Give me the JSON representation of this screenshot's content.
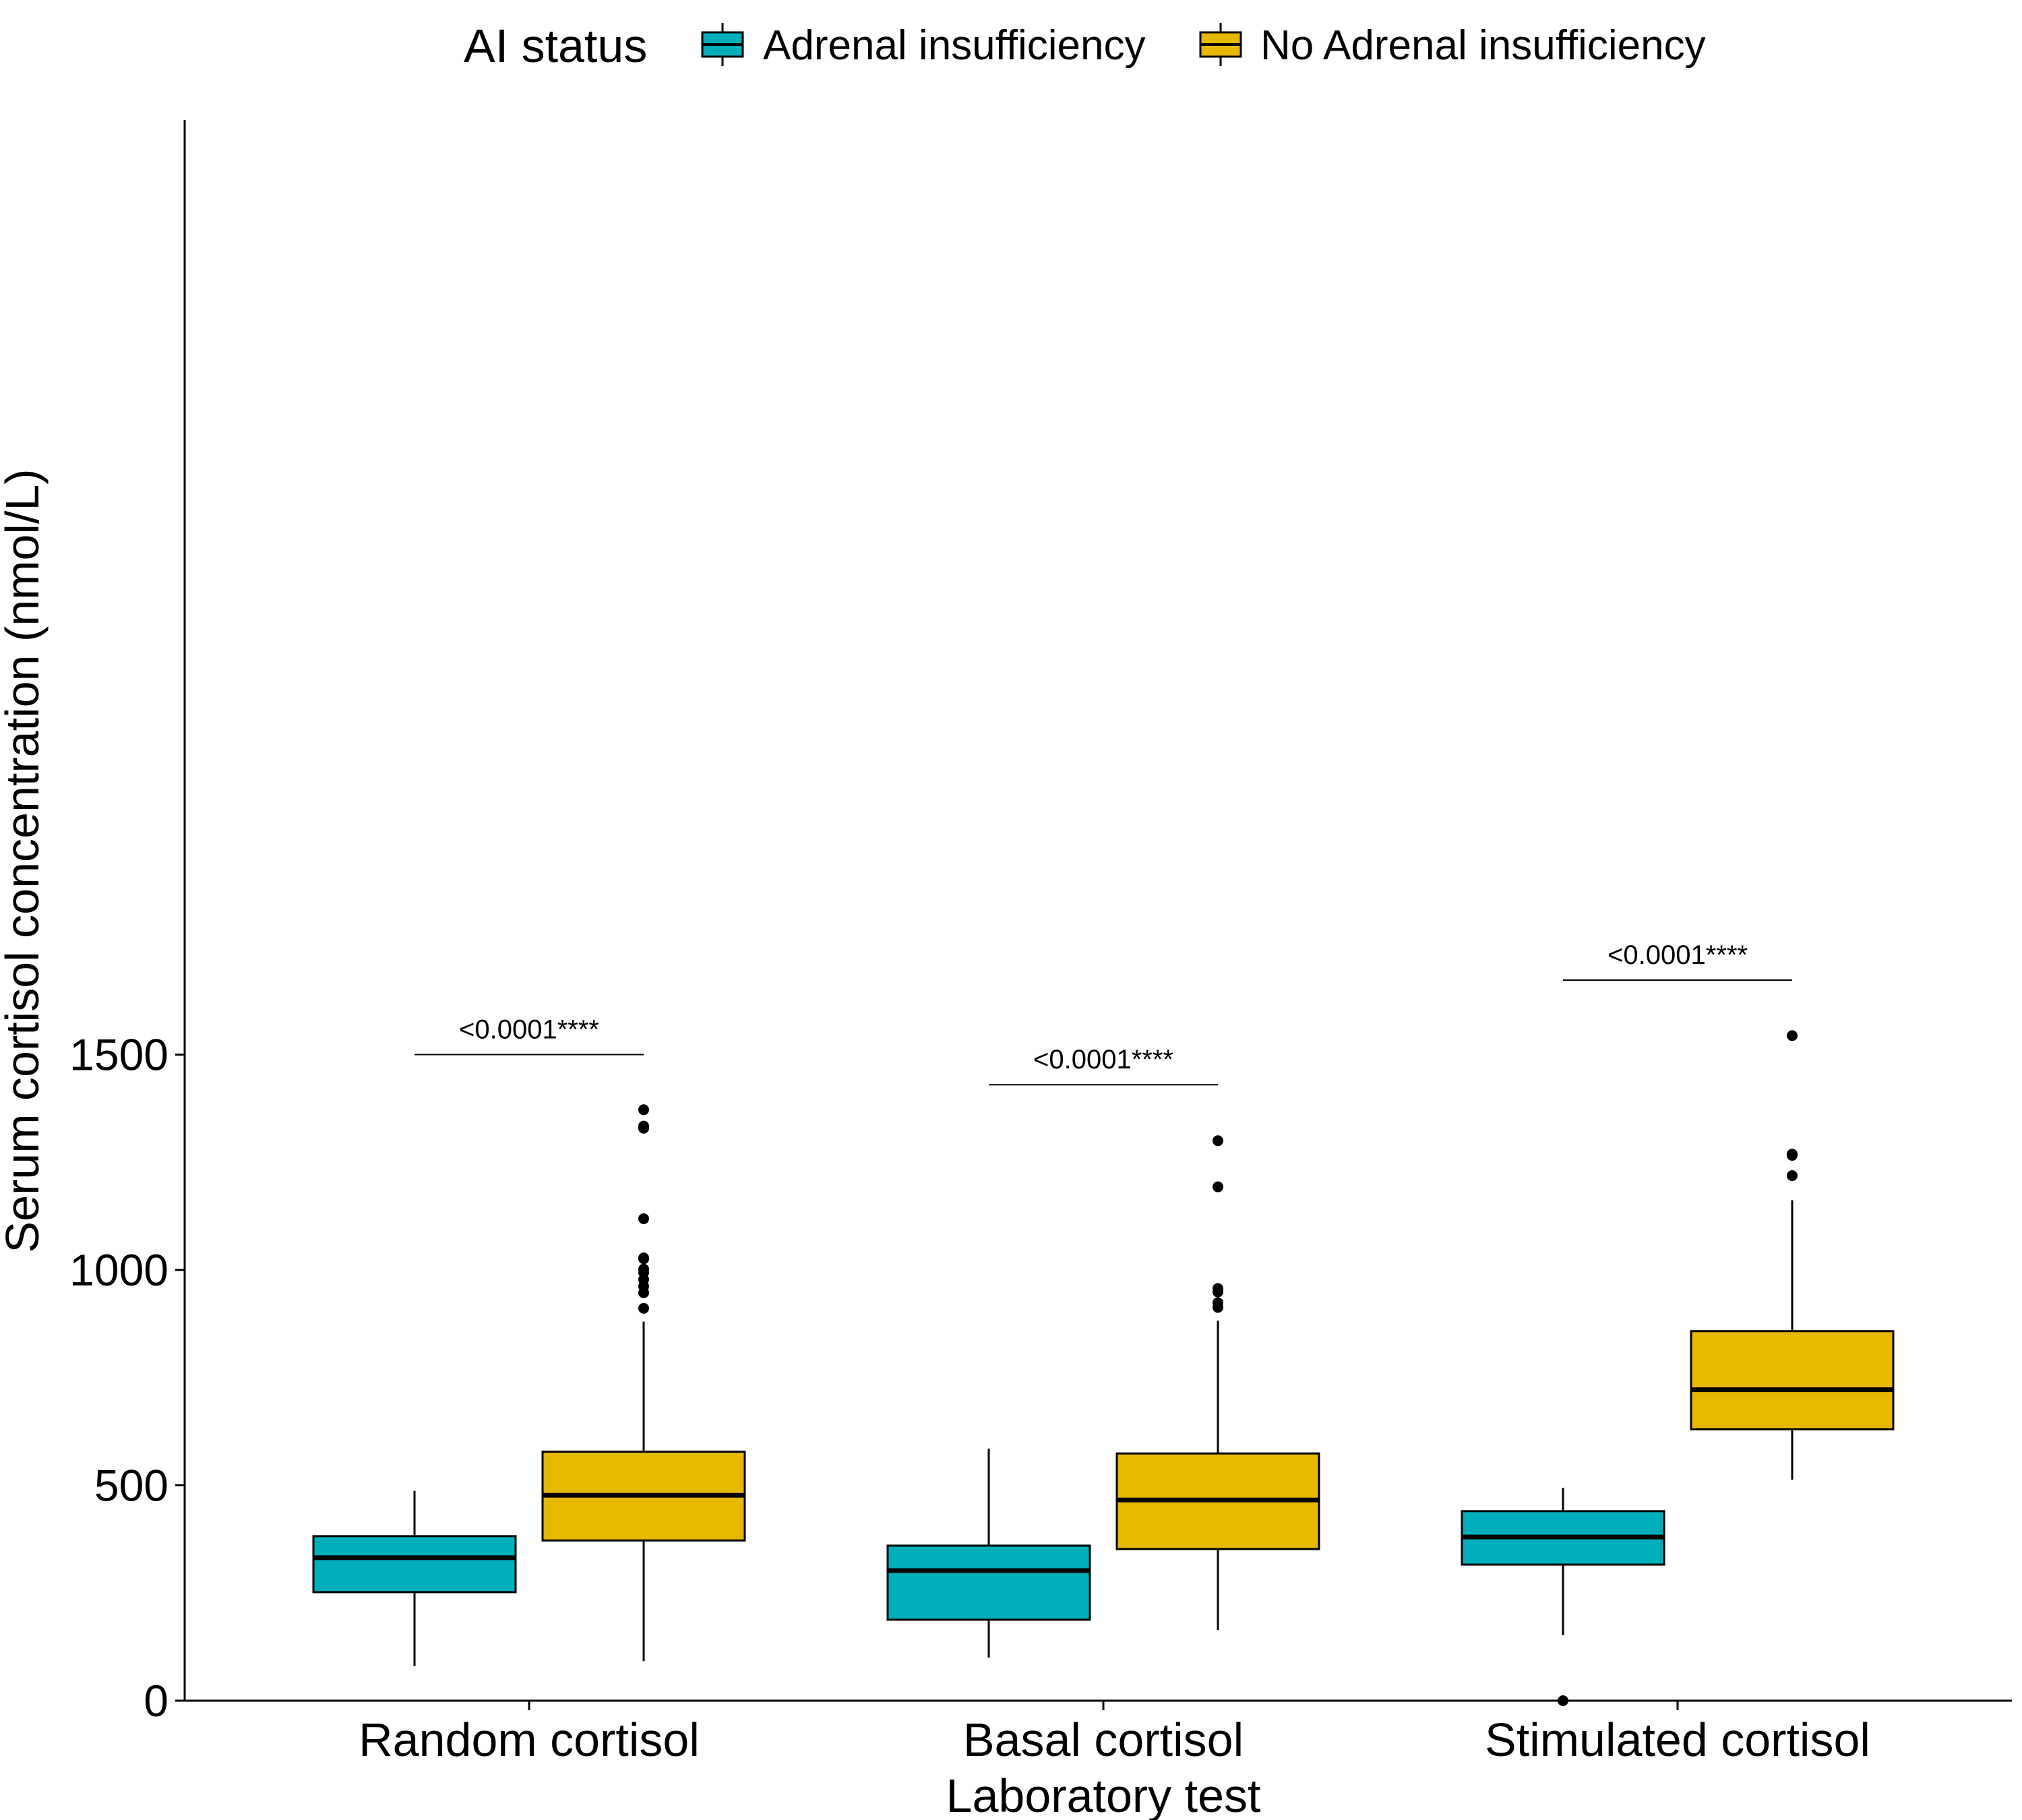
{
  "chart_data": {
    "type": "boxplot",
    "xlabel": "Laboratory test",
    "ylabel": "Serum cortisol concentration (nmol/L)",
    "ylim": [
      0,
      1840
    ],
    "yticks": [
      0,
      500,
      1000,
      1500
    ],
    "ytick_labels": [
      "0",
      "500",
      "1000",
      "1500"
    ],
    "grid": false,
    "legend": {
      "title": "AI status",
      "position": "top",
      "entries": [
        {
          "label": "Adrenal insufficiency",
          "color": "#00AFBB"
        },
        {
          "label": "No Adrenal insufficiency",
          "color": "#E7B800"
        }
      ]
    },
    "categories": [
      "Random cortisol",
      "Basal cortisol",
      "Stimulated cortisol"
    ],
    "series": [
      {
        "name": "Adrenal insufficiency",
        "color": "#00AFBB",
        "boxes": [
          {
            "whisker_low": 80,
            "q1": 252,
            "median": 332,
            "q3": 382,
            "whisker_high": 487,
            "outliers": []
          },
          {
            "whisker_low": 100,
            "q1": 188,
            "median": 302,
            "q3": 360,
            "whisker_high": 585,
            "outliers": []
          },
          {
            "whisker_low": 152,
            "q1": 316,
            "median": 380,
            "q3": 440,
            "whisker_high": 494,
            "outliers": [
              0
            ]
          }
        ]
      },
      {
        "name": "No Adrenal insufficiency",
        "color": "#E7B800",
        "boxes": [
          {
            "whisker_low": 92,
            "q1": 372,
            "median": 477,
            "q3": 578,
            "whisker_high": 880,
            "outliers": [
              911,
              947,
              962,
              978,
              994,
              1002,
              1026,
              1028,
              1119,
              1329,
              1334,
              1372
            ]
          },
          {
            "whisker_low": 164,
            "q1": 352,
            "median": 466,
            "q3": 574,
            "whisker_high": 882,
            "outliers": [
              913,
              924,
              949,
              957,
              1193,
              1300
            ]
          },
          {
            "whisker_low": 513,
            "q1": 630,
            "median": 722,
            "q3": 858,
            "whisker_high": 1162,
            "outliers": [
              1219,
              1266,
              1269,
              1544
            ]
          }
        ]
      }
    ],
    "annotations": [
      {
        "category": "Random cortisol",
        "text": "<0.0001****",
        "y": 1500
      },
      {
        "category": "Basal cortisol",
        "text": "<0.0001****",
        "y": 1430
      },
      {
        "category": "Stimulated cortisol",
        "text": "<0.0001****",
        "y": 1673
      }
    ]
  }
}
